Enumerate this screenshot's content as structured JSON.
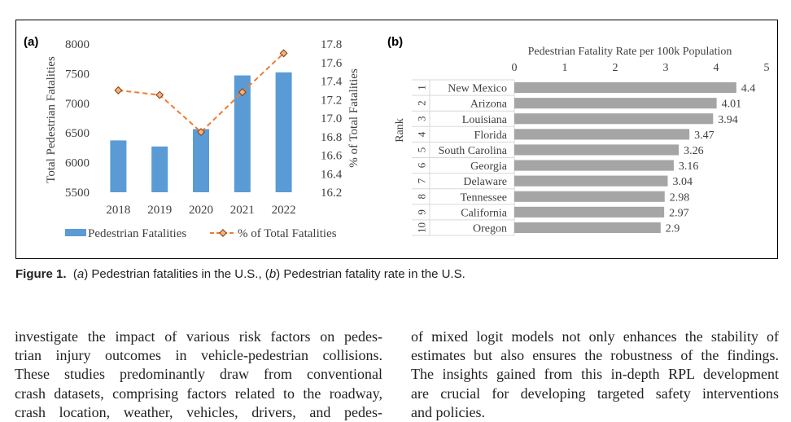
{
  "figure": {
    "caption": {
      "label": "Figure 1.",
      "text_parts": [
        "(",
        "a",
        ") Pedestrian fatalities in the U.S., (",
        "b",
        ") Pedestrian fatality rate in the U.S."
      ]
    }
  },
  "chart_data": [
    {
      "type": "bar",
      "panel_label": "(a)",
      "categories": [
        "2018",
        "2019",
        "2020",
        "2021",
        "2022"
      ],
      "series": [
        {
          "name": "Pedestrian Fatalities",
          "type": "bar",
          "axis": "left",
          "color": "#5b9bd5",
          "values": [
            6374,
            6272,
            6565,
            7470,
            7522
          ]
        },
        {
          "name": "% of Total Fatalities",
          "type": "line",
          "axis": "right",
          "color": "#ed7d31",
          "style": "dashed",
          "marker": "diamond",
          "values": [
            17.3,
            17.25,
            16.85,
            17.28,
            17.7
          ]
        }
      ],
      "ylabel": "Total Pedestrian Fatalities",
      "y2label": "% of Total Fatalities",
      "ylim": [
        5500,
        8000
      ],
      "yticks": [
        "8000",
        "7500",
        "7000",
        "6500",
        "6000",
        "5500"
      ],
      "y2lim": [
        16.2,
        17.8
      ],
      "y2ticks": [
        "17.8",
        "17.6",
        "17.4",
        "17.2",
        "17.0",
        "16.8",
        "16.6",
        "16.4",
        "16.2"
      ],
      "legend_position": "bottom",
      "grid": false
    },
    {
      "type": "bar",
      "orientation": "horizontal",
      "panel_label": "(b)",
      "title": "Pedestrian Fatality Rate per 100k Population",
      "ylabel": "Rank",
      "ranks": [
        "1",
        "2",
        "3",
        "4",
        "5",
        "6",
        "7",
        "8",
        "9",
        "10"
      ],
      "categories": [
        "New Mexico",
        "Arizona",
        "Louisiana",
        "Florida",
        "South Carolina",
        "Georgia",
        "Delaware",
        "Tennessee",
        "California",
        "Oregon"
      ],
      "values": [
        4.4,
        4.01,
        3.94,
        3.47,
        3.26,
        3.16,
        3.04,
        2.98,
        2.97,
        2.9
      ],
      "value_labels": [
        "4.4",
        "4.01",
        "3.94",
        "3.47",
        "3.26",
        "3.16",
        "3.04",
        "2.98",
        "2.97",
        "2.9"
      ],
      "xlim": [
        0,
        5
      ],
      "xticks": [
        "0",
        "1",
        "2",
        "3",
        "4",
        "5"
      ],
      "bar_color": "#a5a5a5",
      "axis_position": "top",
      "grid": false
    }
  ],
  "body": {
    "left_column": [
      "investigate the impact of various risk factors on pedes-",
      "trian injury outcomes in vehicle-pedestrian collisions.",
      "These studies predominantly draw from conventional",
      "crash datasets, comprising factors related to the roadway,",
      "crash location, weather, vehicles, drivers, and pedes-"
    ],
    "right_column": [
      "of mixed logit models not only enhances the stability of",
      "estimates but also ensures the robustness of the findings.",
      "The insights gained from this in-depth RPL development",
      "are crucial for developing targeted safety interventions",
      "and policies."
    ]
  }
}
